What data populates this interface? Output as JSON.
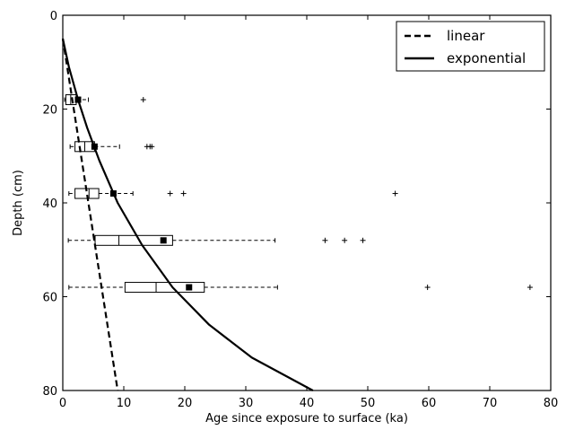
{
  "chart_data": {
    "type": "box+line",
    "xlabel": "Age since exposure to surface (ka)",
    "ylabel": "Depth (cm)",
    "xlim": [
      0,
      80
    ],
    "ylim": [
      80,
      0
    ],
    "y_inverted": true,
    "x_ticks": [
      0,
      10,
      20,
      30,
      40,
      50,
      60,
      70,
      80
    ],
    "y_ticks": [
      0,
      20,
      40,
      60,
      80
    ],
    "grid": false,
    "legend_position": "top-right",
    "legend": [
      {
        "label": "linear",
        "style": "dashed"
      },
      {
        "label": "exponential",
        "style": "solid"
      }
    ],
    "series": [
      {
        "name": "linear",
        "style": "dashed",
        "x": [
          0.0,
          9.0
        ],
        "y": [
          5,
          80
        ]
      },
      {
        "name": "exponential",
        "style": "solid",
        "x": [
          0.0,
          1.0,
          2.5,
          4.0,
          6.0,
          9.0,
          13.0,
          18.0,
          24.0,
          31.0,
          41.0
        ],
        "y": [
          5,
          11,
          18,
          24,
          31,
          40,
          49,
          58,
          66,
          73,
          80
        ]
      }
    ],
    "boxplots": [
      {
        "depth": 18,
        "whisker_low": 0.3,
        "q1": 0.5,
        "median": 1.3,
        "q3": 2.2,
        "whisker_high": 4.2,
        "mean": 2.5,
        "outliers": [
          13.2
        ]
      },
      {
        "depth": 28,
        "whisker_low": 1.2,
        "q1": 2.0,
        "median": 3.6,
        "q3": 5.2,
        "whisker_high": 9.3,
        "mean": 5.2,
        "outliers": [
          13.8,
          14.3,
          14.6
        ]
      },
      {
        "depth": 38,
        "whisker_low": 1.0,
        "q1": 2.0,
        "median": 4.3,
        "q3": 5.9,
        "whisker_high": 11.5,
        "mean": 8.3,
        "outliers": [
          17.6,
          19.8,
          54.5
        ]
      },
      {
        "depth": 48,
        "whisker_low": 0.9,
        "q1": 5.3,
        "median": 9.2,
        "q3": 18.0,
        "whisker_high": 34.8,
        "mean": 16.5,
        "outliers": [
          43.0,
          46.2,
          49.2
        ]
      },
      {
        "depth": 58,
        "whisker_low": 1.0,
        "q1": 10.2,
        "median": 15.3,
        "q3": 23.2,
        "whisker_high": 35.2,
        "mean": 20.7,
        "outliers": [
          59.8,
          76.6
        ]
      }
    ]
  }
}
